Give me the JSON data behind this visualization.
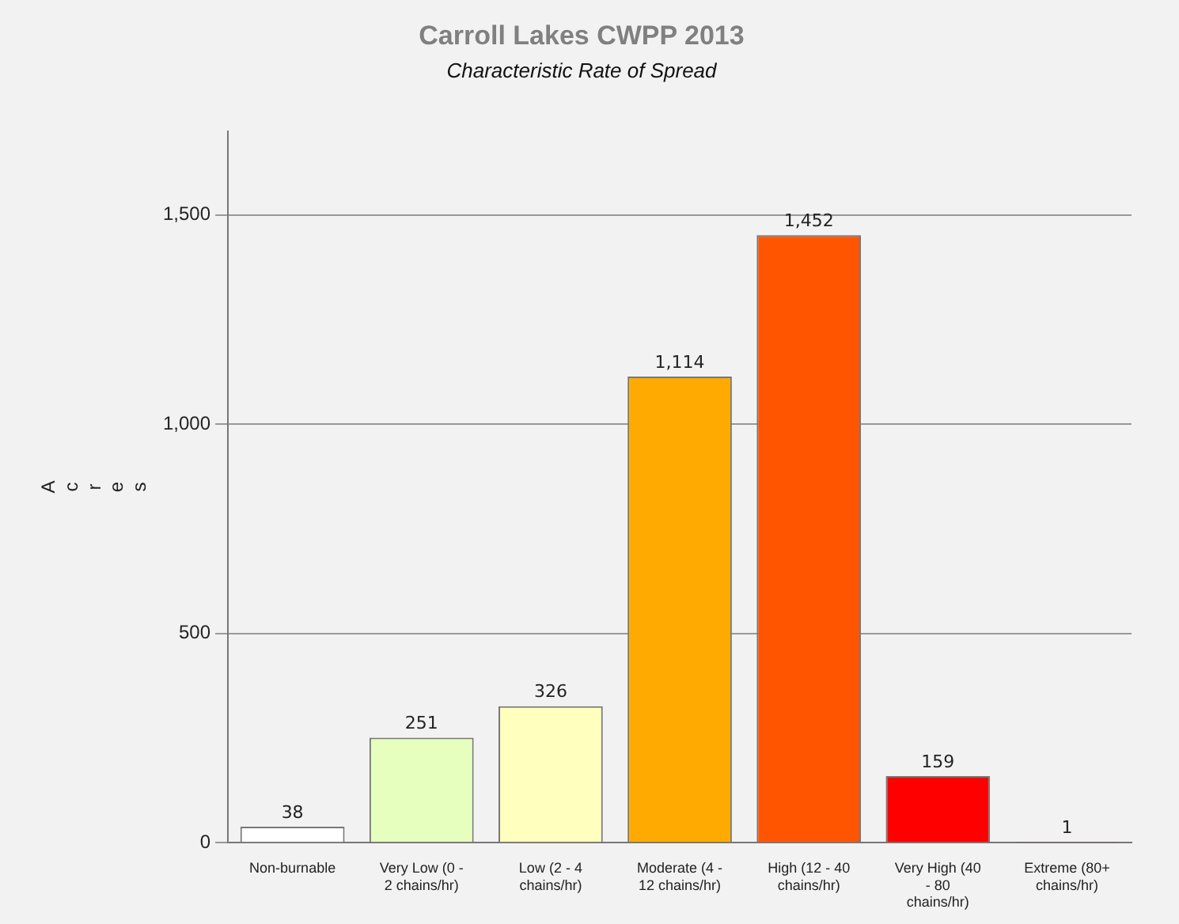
{
  "chart_data": {
    "type": "bar",
    "title": "Carroll Lakes CWPP 2013",
    "subtitle": "Characteristic Rate of Spread",
    "ylabel": "Acres",
    "categories": [
      "Non-burnable",
      "Very Low (0 - 2 chains/hr)",
      "Low (2 - 4 chains/hr)",
      "Moderate (4 - 12 chains/hr)",
      "High (12 - 40 chains/hr)",
      "Very High (40 - 80 chains/hr)",
      "Extreme (80+ chains/hr)"
    ],
    "values": [
      38,
      251,
      326,
      1114,
      1452,
      159,
      1
    ],
    "value_labels": [
      "38",
      "251",
      "326",
      "1,114",
      "1,452",
      "159",
      "1"
    ],
    "colors": [
      "#ffffff",
      "#e6ffbe",
      "#ffffbe",
      "#ffaa00",
      "#ff5500",
      "#ff0000",
      "#a80000"
    ],
    "ylim": [
      0,
      1700
    ],
    "yticks": [
      0,
      500,
      {
        "value": 1000,
        "label": "1,000"
      },
      {
        "value": 1500,
        "label": "1,500"
      }
    ],
    "grid": "y",
    "legend": false
  }
}
